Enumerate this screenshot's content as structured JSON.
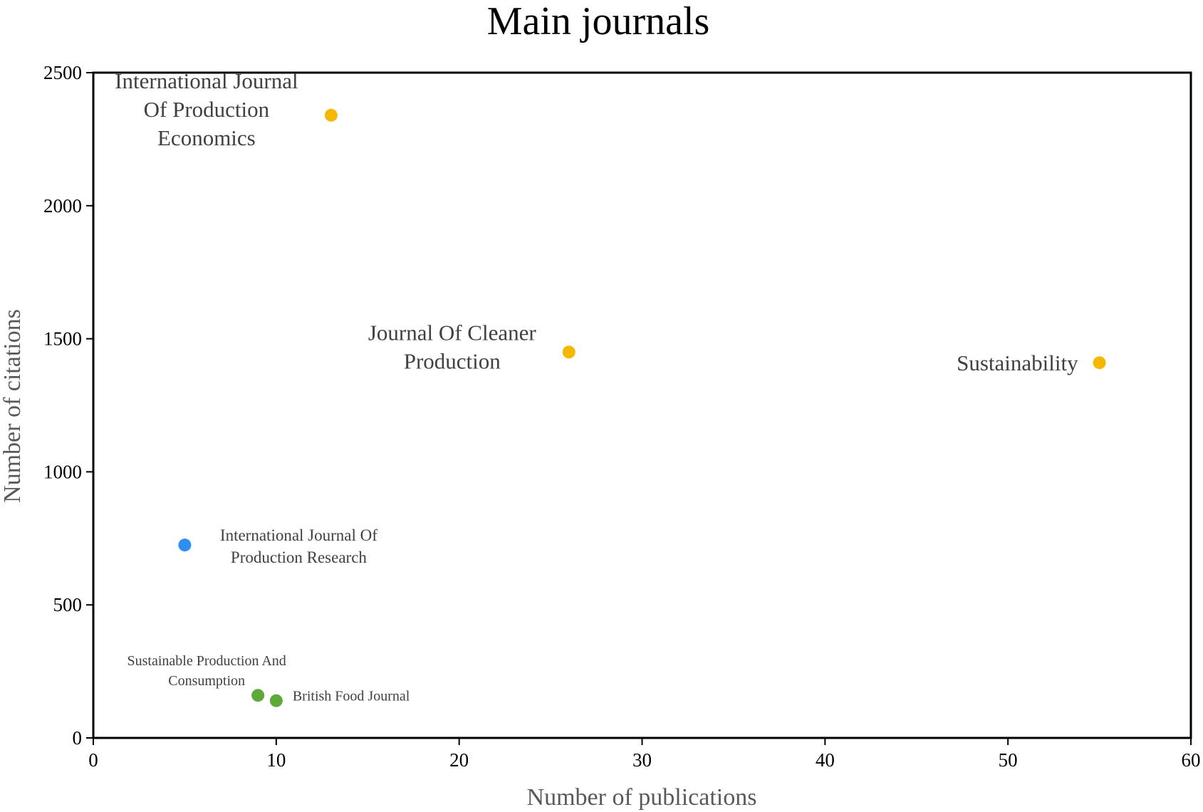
{
  "chart_data": {
    "type": "scatter",
    "title": "Main journals",
    "xlabel": "Number of publications",
    "ylabel": "Number of citations",
    "xlim": [
      0,
      60
    ],
    "ylim": [
      0,
      2500
    ],
    "xticks": [
      0,
      10,
      20,
      30,
      40,
      50,
      60
    ],
    "yticks": [
      0,
      500,
      1000,
      1500,
      2000,
      2500
    ],
    "grid": false,
    "points": [
      {
        "label": "International Journal Of Production Economics",
        "label_lines": [
          "International Journal",
          "Of Production",
          "Economics"
        ],
        "x": 13,
        "y": 2340,
        "color": "#f5b800"
      },
      {
        "label": "Journal Of Cleaner Production",
        "label_lines": [
          "Journal Of Cleaner",
          "Production"
        ],
        "x": 26,
        "y": 1450,
        "color": "#f5b800"
      },
      {
        "label": "Sustainability",
        "label_lines": [
          "Sustainability"
        ],
        "x": 55,
        "y": 1410,
        "color": "#f5b800"
      },
      {
        "label": "International Journal Of Production Research",
        "label_lines": [
          "International Journal Of",
          "Production Research"
        ],
        "x": 5,
        "y": 725,
        "color": "#2e8ff0"
      },
      {
        "label": "Sustainable Production And Consumption",
        "label_lines": [
          "Sustainable Production And",
          "Consumption"
        ],
        "x": 9,
        "y": 160,
        "color": "#5fa83a"
      },
      {
        "label": "British Food Journal",
        "label_lines": [
          "British Food Journal"
        ],
        "x": 10,
        "y": 140,
        "color": "#5fa83a"
      }
    ]
  }
}
